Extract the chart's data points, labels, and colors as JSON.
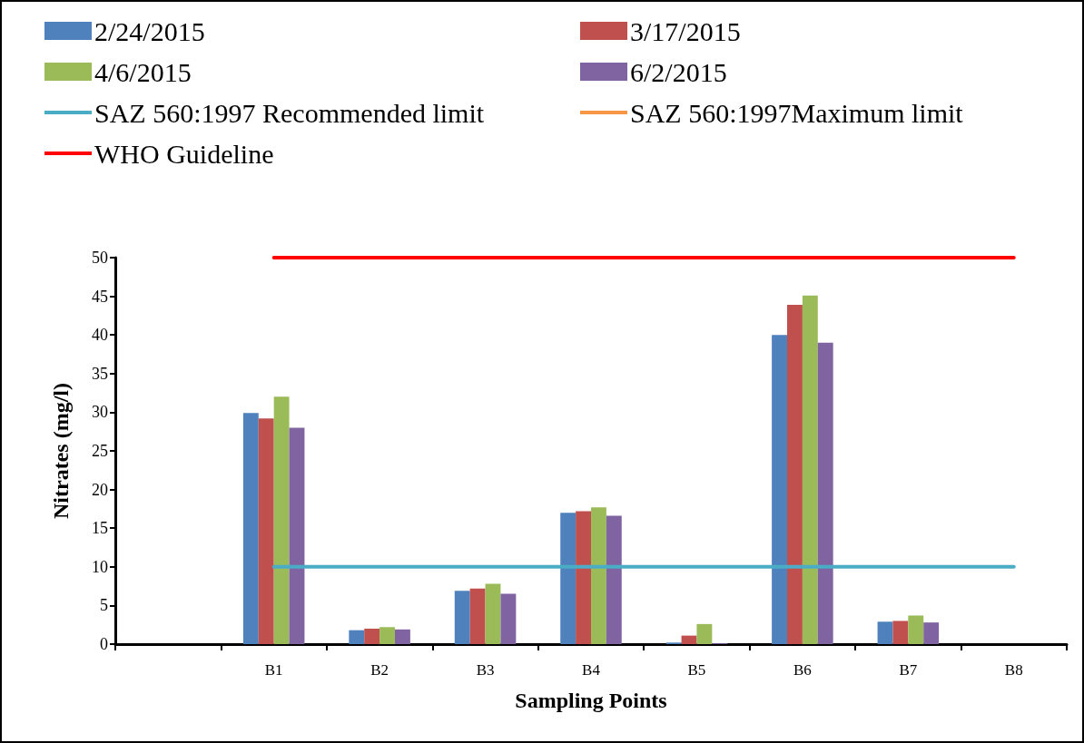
{
  "chart_data": {
    "type": "bar",
    "xlabel": "Sampling Points",
    "ylabel": "Nitrates (mg/l)",
    "categories": [
      null,
      "B1",
      "B2",
      "B3",
      "B4",
      "B5",
      "B6",
      "B7",
      "B8"
    ],
    "ylim": [
      0,
      50
    ],
    "yticks": [
      0,
      5,
      10,
      15,
      20,
      25,
      30,
      35,
      40,
      45,
      50
    ],
    "grid": false,
    "legend": "top",
    "marker": "none",
    "series": [
      {
        "name": "2/24/2015",
        "color": "#4f81bd",
        "values": [
          null,
          29.9,
          1.8,
          6.9,
          17.0,
          0.2,
          40.0,
          2.9,
          null
        ]
      },
      {
        "name": "3/17/2015",
        "color": "#c0504d",
        "values": [
          null,
          29.2,
          2.0,
          7.2,
          17.2,
          1.1,
          43.9,
          3.0,
          null
        ]
      },
      {
        "name": "4/6/2015",
        "color": "#9bbb59",
        "values": [
          null,
          32.0,
          2.2,
          7.8,
          17.7,
          2.6,
          45.1,
          3.7,
          null
        ]
      },
      {
        "name": "6/2/2015",
        "color": "#8064a2",
        "values": [
          null,
          28.0,
          1.9,
          6.5,
          16.6,
          0.1,
          39.0,
          2.8,
          null
        ]
      },
      {
        "name": "SAZ 560:1997 Recommended limit",
        "type": "line",
        "color": "#4bacc6",
        "values": [
          null,
          10,
          10,
          10,
          10,
          10,
          10,
          10,
          10
        ]
      },
      {
        "name": "SAZ 560:1997Maximum limit",
        "type": "line",
        "color": "#f79646",
        "values": [
          null,
          null,
          null,
          null,
          null,
          null,
          null,
          null,
          null
        ]
      },
      {
        "name": "WHO Guideline",
        "type": "line",
        "color": "#ff0000",
        "values": [
          null,
          50,
          50,
          50,
          50,
          50,
          50,
          50,
          50
        ]
      }
    ]
  }
}
